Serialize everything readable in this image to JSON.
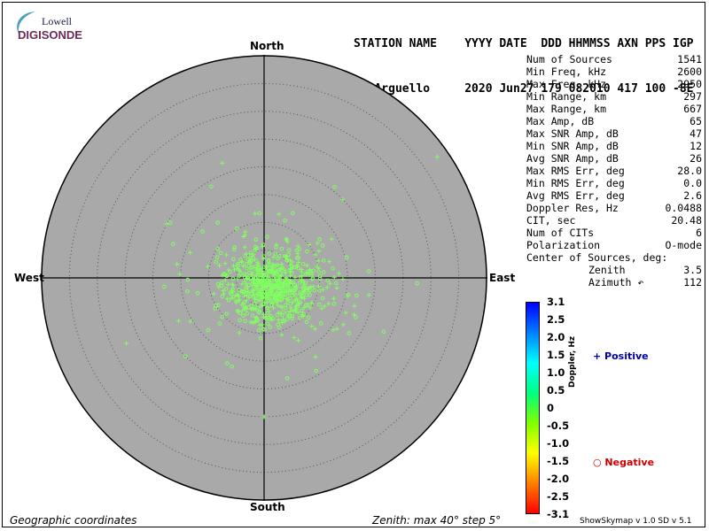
{
  "logo": {
    "top": "Lowell",
    "bottom": "DIGISONDE"
  },
  "header": {
    "line1": "STATION NAME    YYYY DATE  DDD HHMMSS AXN PPS IGP",
    "line2": "Pt Arguello     2020 Jun27 179 082010 417 100 -8E"
  },
  "directions": {
    "north": "North",
    "south": "South",
    "east": "East",
    "west": "West"
  },
  "stats": [
    {
      "label": "Num of Sources",
      "value": "1541"
    },
    {
      "label": "Min Freq, kHz",
      "value": "2600"
    },
    {
      "label": "Max Freq, kHz",
      "value": "2950"
    },
    {
      "label": "Min Range, km",
      "value": "297"
    },
    {
      "label": "Max Range, km",
      "value": "667"
    },
    {
      "label": "Max Amp, dB",
      "value": "65"
    },
    {
      "label": "Max SNR Amp, dB",
      "value": "47"
    },
    {
      "label": "Min SNR Amp, dB",
      "value": "12"
    },
    {
      "label": "Avg SNR Amp, dB",
      "value": "26"
    },
    {
      "label": "Max RMS Err, deg",
      "value": "28.0"
    },
    {
      "label": "Min RMS Err, deg",
      "value": "0.0"
    },
    {
      "label": "Avg RMS Err, deg",
      "value": "2.6"
    },
    {
      "label": "Doppler Res, Hz",
      "value": "0.0488"
    },
    {
      "label": "CIT, sec",
      "value": "20.48"
    },
    {
      "label": "Num of CITs",
      "value": "6"
    },
    {
      "label": "Polarization",
      "value": "O-mode"
    },
    {
      "label": "Center of Sources, deg:",
      "value": ""
    },
    {
      "label": "Zenith",
      "value": "3.5"
    },
    {
      "label": "Azimuth ↶",
      "value": "112"
    }
  ],
  "colorbar": {
    "label": "Doppler, Hz",
    "ticks": [
      "3.1",
      "2.5",
      "2.0",
      "1.5",
      "1.0",
      "0.5",
      "0",
      "-0.5",
      "-1.0",
      "-1.5",
      "-2.0",
      "-2.5",
      "-3.1"
    ],
    "colors": [
      "#0000ff",
      "#0080ff",
      "#00ffff",
      "#00ff80",
      "#80ff00",
      "#ffff00",
      "#ff8000",
      "#ff0000"
    ]
  },
  "legend": {
    "positive": "+ Positive",
    "negative": "○ Negative"
  },
  "footer": {
    "left": "Geographic coordinates",
    "center": "Zenith: max 40°  step 5°",
    "right": "ShowSkymap v 1.0   SD v 5.1"
  },
  "chart_data": {
    "type": "scatter",
    "projection": "polar skymap",
    "zenith_max_deg": 40,
    "zenith_step_deg": 5,
    "num_sources": 1541,
    "center_of_sources": {
      "zenith_deg": 3.5,
      "azimuth_deg": 112
    },
    "source_color": "#80ff60",
    "positive_marker": "+",
    "negative_marker": "o",
    "sample_positive": [
      {
        "zenith": 4.0,
        "azimuth": 90
      },
      {
        "zenith": 9.0,
        "azimuth": 100
      },
      {
        "zenith": 12.0,
        "azimuth": 115
      },
      {
        "zenith": 16.0,
        "azimuth": 125
      },
      {
        "zenith": 10.0,
        "azimuth": 80
      },
      {
        "zenith": 14.0,
        "azimuth": 60
      },
      {
        "zenith": 20.0,
        "azimuth": 45
      },
      {
        "zenith": 8.0,
        "azimuth": 30
      },
      {
        "zenith": 38.0,
        "azimuth": 55
      },
      {
        "zenith": 22.0,
        "azimuth": 340
      },
      {
        "zenith": 13.0,
        "azimuth": 135
      },
      {
        "zenith": 6.0,
        "azimuth": 150
      },
      {
        "zenith": 25.0,
        "azimuth": 180
      }
    ],
    "sample_negative": [
      {
        "zenith": 3.0,
        "azimuth": 270
      },
      {
        "zenith": 6.0,
        "azimuth": 250
      },
      {
        "zenith": 10.0,
        "azimuth": 240
      },
      {
        "zenith": 14.0,
        "azimuth": 260
      },
      {
        "zenith": 18.0,
        "azimuth": 265
      },
      {
        "zenith": 9.0,
        "azimuth": 300
      },
      {
        "zenith": 13.0,
        "azimuth": 320
      },
      {
        "zenith": 20.0,
        "azimuth": 225
      },
      {
        "zenith": 17.0,
        "azimuth": 200
      },
      {
        "zenith": 11.0,
        "azimuth": 20
      },
      {
        "zenith": 19.0,
        "azimuth": 330
      },
      {
        "zenith": 5.0,
        "azimuth": 200
      }
    ]
  }
}
